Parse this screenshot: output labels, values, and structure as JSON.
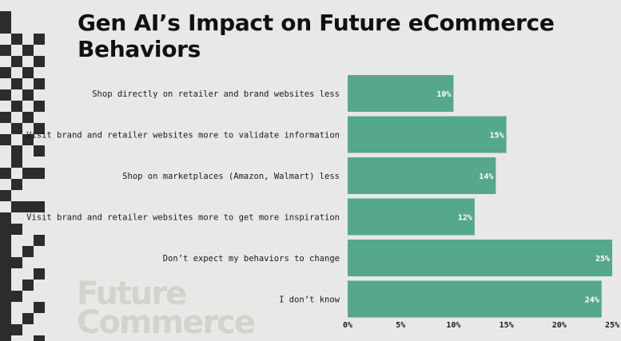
{
  "title": "Gen AI’s Impact on Future eCommerce Behaviors",
  "watermark": {
    "line1": "Future",
    "line2": "Commerce"
  },
  "colors": {
    "bar": "#55a88c",
    "background": "#e8e8e6",
    "deco": "#2c2c2c"
  },
  "chart_data": {
    "type": "bar",
    "orientation": "horizontal",
    "title": "Gen AI’s Impact on Future eCommerce Behaviors",
    "categories": [
      "Shop directly on retailer and brand websites less",
      "Visit brand and retailer websites more to validate information",
      "Shop on marketplaces (Amazon, Walmart) less",
      "Visit brand and retailer websites more to get more inspiration",
      "Don’t expect my behaviors to change",
      "I don’t know"
    ],
    "values": [
      10,
      15,
      14,
      12,
      25,
      24
    ],
    "value_labels": [
      "10%",
      "15%",
      "14%",
      "12%",
      "25%",
      "24%"
    ],
    "xlim": [
      0,
      25
    ],
    "xticks": [
      "0%",
      "5%",
      "10%",
      "15%",
      "20%",
      "25%"
    ],
    "xlabel": "",
    "ylabel": "",
    "grid": false,
    "legend": "none"
  }
}
